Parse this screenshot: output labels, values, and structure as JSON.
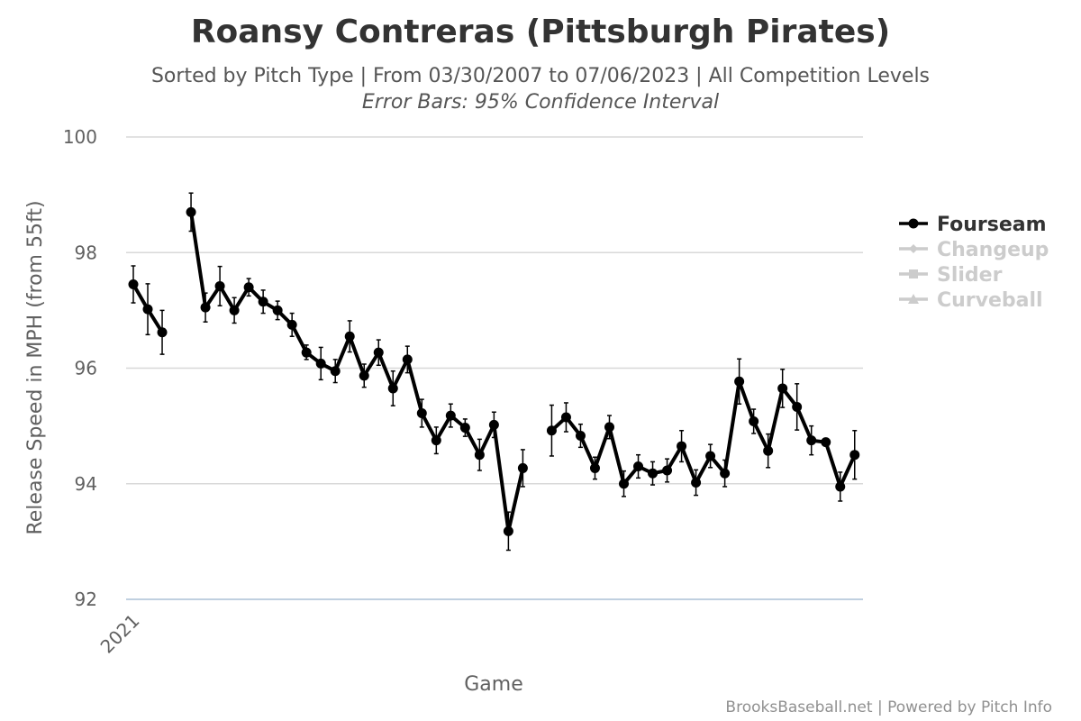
{
  "chart_data": {
    "type": "line",
    "title": "Roansy Contreras (Pittsburgh Pirates)",
    "subtitle": "Sorted by Pitch Type | From 03/30/2007 to 07/06/2023 | All Competition Levels",
    "subtitle2": "Error Bars: 95% Confidence Interval",
    "xlabel": "Game",
    "ylabel": "Release Speed in MPH (from 55ft)",
    "x_tick_labels": [
      "2021"
    ],
    "ylim": [
      92,
      100
    ],
    "y_ticks": [
      92,
      94,
      96,
      98,
      100
    ],
    "y_tick_labels": [
      "92",
      "94",
      "96",
      "98",
      "100"
    ],
    "grid": true,
    "legend_position": "right",
    "series": [
      {
        "name": "Fourseam",
        "color": "#000000",
        "active": true,
        "points": [
          {
            "x": 0,
            "y": 97.45,
            "lo": 97.13,
            "hi": 97.77
          },
          {
            "x": 1,
            "y": 97.02,
            "lo": 96.58,
            "hi": 97.46
          },
          {
            "x": 2,
            "y": 96.62,
            "lo": 96.24,
            "hi": 97.0
          },
          {
            "x": 3,
            "y": null
          },
          {
            "x": 4,
            "y": 98.7,
            "lo": 98.37,
            "hi": 99.03
          },
          {
            "x": 5,
            "y": 97.05,
            "lo": 96.8,
            "hi": 97.3
          },
          {
            "x": 6,
            "y": 97.42,
            "lo": 97.08,
            "hi": 97.76
          },
          {
            "x": 7,
            "y": 97.0,
            "lo": 96.78,
            "hi": 97.22
          },
          {
            "x": 8,
            "y": 97.4,
            "lo": 97.25,
            "hi": 97.55
          },
          {
            "x": 9,
            "y": 97.15,
            "lo": 96.95,
            "hi": 97.35
          },
          {
            "x": 10,
            "y": 97.0,
            "lo": 96.84,
            "hi": 97.16
          },
          {
            "x": 11,
            "y": 96.75,
            "lo": 96.55,
            "hi": 96.95
          },
          {
            "x": 12,
            "y": 96.27,
            "lo": 96.15,
            "hi": 96.4
          },
          {
            "x": 13,
            "y": 96.08,
            "lo": 95.8,
            "hi": 96.36
          },
          {
            "x": 14,
            "y": 95.95,
            "lo": 95.75,
            "hi": 96.15
          },
          {
            "x": 15,
            "y": 96.55,
            "lo": 96.28,
            "hi": 96.82
          },
          {
            "x": 16,
            "y": 95.87,
            "lo": 95.67,
            "hi": 96.07
          },
          {
            "x": 17,
            "y": 96.27,
            "lo": 96.05,
            "hi": 96.49
          },
          {
            "x": 18,
            "y": 95.65,
            "lo": 95.35,
            "hi": 95.95
          },
          {
            "x": 19,
            "y": 96.15,
            "lo": 95.92,
            "hi": 96.38
          },
          {
            "x": 20,
            "y": 95.22,
            "lo": 94.98,
            "hi": 95.46
          },
          {
            "x": 21,
            "y": 94.75,
            "lo": 94.52,
            "hi": 94.98
          },
          {
            "x": 22,
            "y": 95.18,
            "lo": 94.98,
            "hi": 95.38
          },
          {
            "x": 23,
            "y": 94.97,
            "lo": 94.82,
            "hi": 95.12
          },
          {
            "x": 24,
            "y": 94.5,
            "lo": 94.23,
            "hi": 94.77
          },
          {
            "x": 25,
            "y": 95.02,
            "lo": 94.8,
            "hi": 95.24
          },
          {
            "x": 26,
            "y": 93.18,
            "lo": 92.85,
            "hi": 93.51
          },
          {
            "x": 27,
            "y": 94.27,
            "lo": 93.95,
            "hi": 94.59
          },
          {
            "x": 28,
            "y": null
          },
          {
            "x": 29,
            "y": 94.92,
            "lo": 94.48,
            "hi": 95.36
          },
          {
            "x": 30,
            "y": 95.15,
            "lo": 94.9,
            "hi": 95.4
          },
          {
            "x": 31,
            "y": 94.83,
            "lo": 94.63,
            "hi": 95.03
          },
          {
            "x": 32,
            "y": 94.27,
            "lo": 94.08,
            "hi": 94.46
          },
          {
            "x": 33,
            "y": 94.98,
            "lo": 94.78,
            "hi": 95.18
          },
          {
            "x": 34,
            "y": 94.0,
            "lo": 93.78,
            "hi": 94.22
          },
          {
            "x": 35,
            "y": 94.3,
            "lo": 94.1,
            "hi": 94.5
          },
          {
            "x": 36,
            "y": 94.18,
            "lo": 93.98,
            "hi": 94.38
          },
          {
            "x": 37,
            "y": 94.23,
            "lo": 94.03,
            "hi": 94.43
          },
          {
            "x": 38,
            "y": 94.65,
            "lo": 94.38,
            "hi": 94.92
          },
          {
            "x": 39,
            "y": 94.02,
            "lo": 93.8,
            "hi": 94.24
          },
          {
            "x": 40,
            "y": 94.48,
            "lo": 94.28,
            "hi": 94.68
          },
          {
            "x": 41,
            "y": 94.18,
            "lo": 93.95,
            "hi": 94.41
          },
          {
            "x": 42,
            "y": 95.77,
            "lo": 95.38,
            "hi": 96.16
          },
          {
            "x": 43,
            "y": 95.08,
            "lo": 94.87,
            "hi": 95.29
          },
          {
            "x": 44,
            "y": 94.57,
            "lo": 94.28,
            "hi": 94.86
          },
          {
            "x": 45,
            "y": 95.65,
            "lo": 95.32,
            "hi": 95.98
          },
          {
            "x": 46,
            "y": 95.33,
            "lo": 94.93,
            "hi": 95.73
          },
          {
            "x": 47,
            "y": 94.75,
            "lo": 94.5,
            "hi": 95.0
          },
          {
            "x": 48,
            "y": 94.72,
            "lo": 94.72,
            "hi": 94.72
          },
          {
            "x": 49,
            "y": 93.95,
            "lo": 93.7,
            "hi": 94.2
          },
          {
            "x": 50,
            "y": 94.5,
            "lo": 94.08,
            "hi": 94.92
          }
        ]
      },
      {
        "name": "Changeup",
        "color": "#cccccc",
        "active": false,
        "marker": "diamond",
        "points": []
      },
      {
        "name": "Slider",
        "color": "#cccccc",
        "active": false,
        "marker": "square",
        "points": []
      },
      {
        "name": "Curveball",
        "color": "#cccccc",
        "active": false,
        "marker": "triangle",
        "points": []
      }
    ]
  },
  "credits": "BrooksBaseball.net | Powered by Pitch Info"
}
